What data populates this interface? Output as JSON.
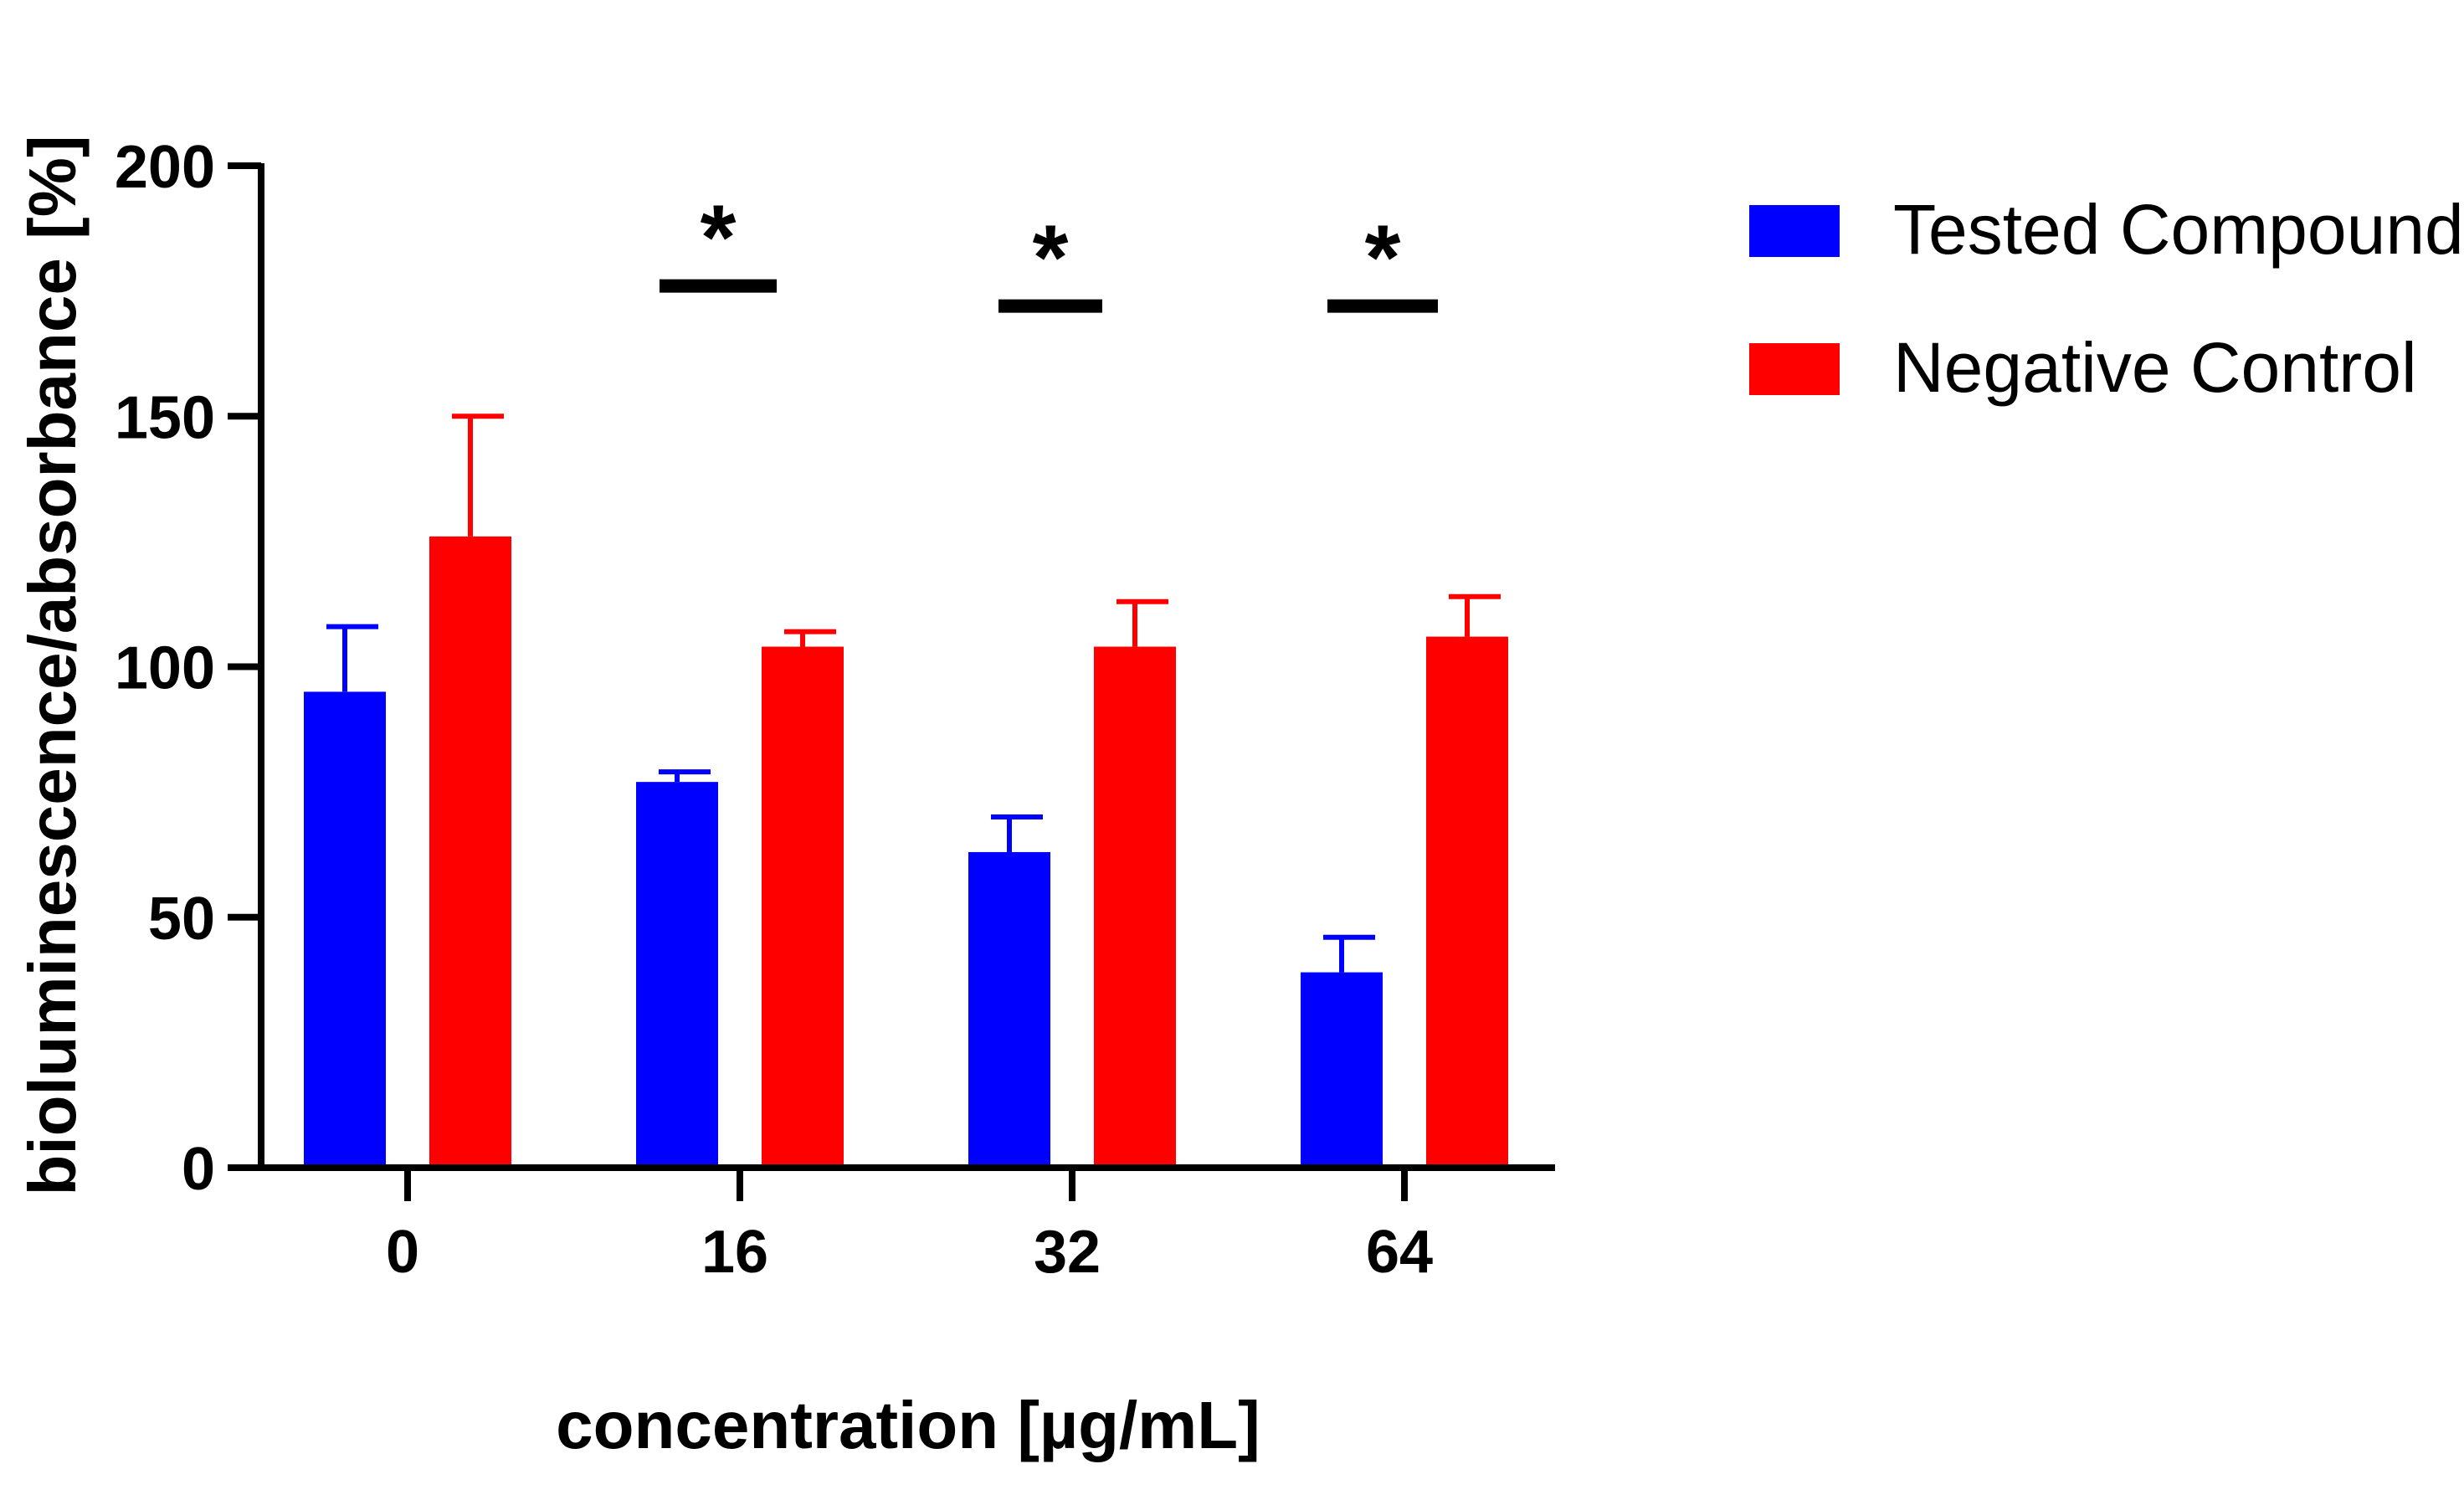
{
  "chart_data": {
    "type": "bar",
    "title": "",
    "xlabel": "concentration [µg/mL]",
    "ylabel": "bioluminescence/absorbance [%]",
    "categories": [
      "0",
      "16",
      "32",
      "64"
    ],
    "ylim": [
      0,
      200
    ],
    "yticks": [
      "0",
      "50",
      "100",
      "150",
      "200"
    ],
    "grid": false,
    "legend_position": "top-right",
    "series": [
      {
        "name": "Tested Compound",
        "color": "#0000ff",
        "values": [
          95,
          77,
          63,
          39
        ],
        "errors": [
          13,
          2,
          7,
          7
        ]
      },
      {
        "name": "Negative Control",
        "color": "#ff0000",
        "values": [
          126,
          104,
          104,
          106
        ],
        "errors": [
          24,
          3,
          9,
          8
        ]
      }
    ],
    "significance": [
      {
        "category": "16",
        "label": "*",
        "bar_value": 176
      },
      {
        "category": "32",
        "label": "*",
        "bar_value": 172
      },
      {
        "category": "64",
        "label": "*",
        "bar_value": 172
      }
    ]
  }
}
